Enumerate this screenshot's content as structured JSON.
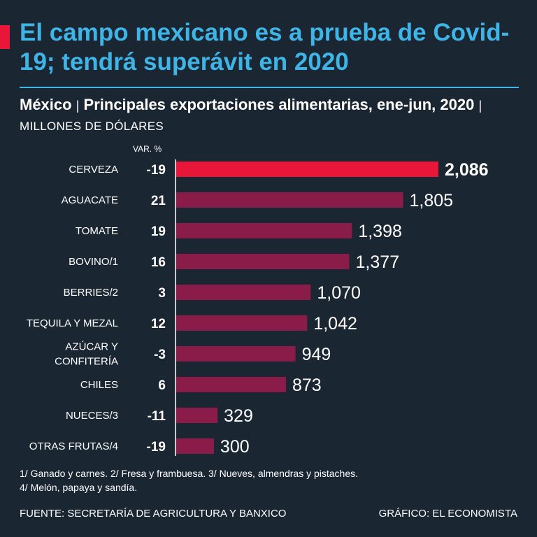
{
  "headline": "El campo mexicano es a prueba de Covid-19; tendrá superávit en 2020",
  "subtitle": {
    "country": "México",
    "separator": "|",
    "title": "Principales exportaciones alimentarias, ene-jun, 2020",
    "units": "MILLONES DE DÓLARES"
  },
  "chart_data": {
    "type": "bar",
    "orientation": "horizontal",
    "var_header": "VAR. %",
    "categories": [
      [
        "CERVEZA"
      ],
      [
        "AGUACATE"
      ],
      [
        "TOMATE"
      ],
      [
        "BOVINO/1"
      ],
      [
        "BERRIES/2"
      ],
      [
        "TEQUILA Y MEZAL"
      ],
      [
        "AZÚCAR Y",
        "CONFITERÍA"
      ],
      [
        "CHILES"
      ],
      [
        "NUECES/3"
      ],
      [
        "OTRAS FRUTAS/4"
      ]
    ],
    "values": [
      2086,
      1805,
      1398,
      1377,
      1070,
      1042,
      949,
      873,
      329,
      300
    ],
    "value_labels": [
      "2,086",
      "1,805",
      "1,398",
      "1,377",
      "1,070",
      "1,042",
      "949",
      "873",
      "329",
      "300"
    ],
    "var_pct": [
      "-19",
      "21",
      "19",
      "16",
      "3",
      "12",
      "-3",
      "6",
      "-11",
      "-19"
    ],
    "highlight_index": 0,
    "colors": {
      "highlight": "#e8173a",
      "bar": "#8a1c4a",
      "axis": "#ffffff"
    }
  },
  "notes": {
    "line1": "1/ Ganado y carnes. 2/ Fresa y frambuesa. 3/ Nueves, almendras y pistaches.",
    "line2": "4/ Melón, papaya y sandía."
  },
  "footer": {
    "source": "FUENTE: SECRETARÍA DE AGRICULTURA Y BANXICO",
    "credit": "GRÁFICO: EL ECONOMISTA"
  }
}
